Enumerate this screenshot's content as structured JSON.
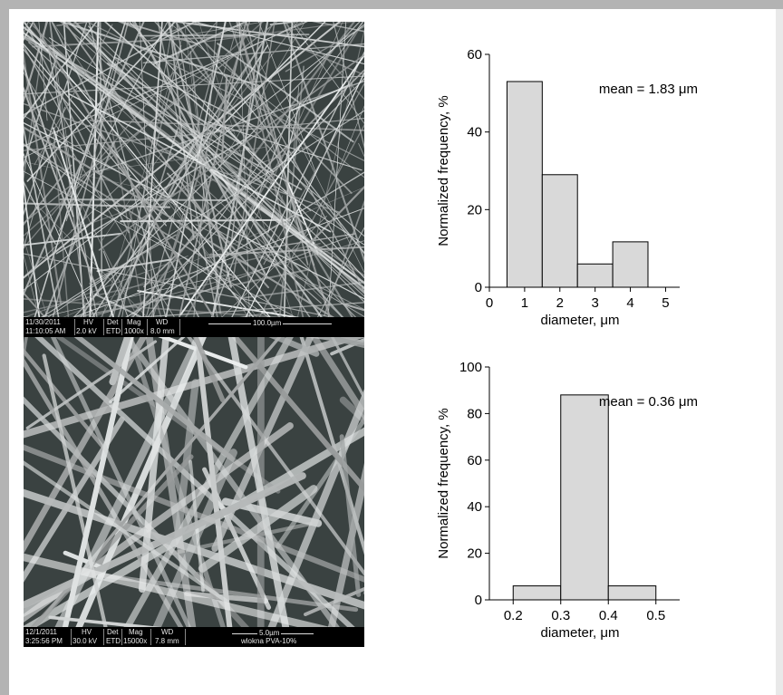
{
  "colors": {
    "frame": "#b3b3b3",
    "bar_fill": "#d9d9d9",
    "bar_stroke": "#000000"
  },
  "sem_images": [
    {
      "date": "11/30/2011",
      "time": "11:10:05 AM",
      "hv_label": "HV",
      "hv_value": "2.0 kV",
      "det_label": "Det",
      "det_value": "ETD",
      "mag_label": "Mag",
      "mag_value": "1000x",
      "wd_label": "WD",
      "wd_value": "8.0 mm",
      "scale_label": "100.0µm",
      "caption": ""
    },
    {
      "date": "12/1/2011",
      "time": "3:25:56 PM",
      "hv_label": "HV",
      "hv_value": "30.0 kV",
      "det_label": "Det",
      "det_value": "ETD",
      "mag_label": "Mag",
      "mag_value": "15000x",
      "wd_label": "WD",
      "wd_value": "7.8 mm",
      "scale_label": "5.0µm",
      "caption": "wlokna PVA-10%"
    }
  ],
  "chart_data": [
    {
      "type": "bar",
      "title": "",
      "annotation": "mean = 1.83 μm",
      "xlabel": "diameter, μm",
      "ylabel": "Normalized frequency, %",
      "xlim": [
        0,
        5.4
      ],
      "ylim": [
        0,
        60
      ],
      "xticks": [
        0,
        1,
        2,
        3,
        4,
        5
      ],
      "yticks": [
        0,
        20,
        40,
        60
      ],
      "bins": [
        {
          "from": 0.5,
          "to": 1.5,
          "value": 53
        },
        {
          "from": 1.5,
          "to": 2.5,
          "value": 29
        },
        {
          "from": 2.5,
          "to": 3.5,
          "value": 6
        },
        {
          "from": 3.5,
          "to": 4.5,
          "value": 11.7
        }
      ],
      "grid": false
    },
    {
      "type": "bar",
      "title": "",
      "annotation": "mean = 0.36 μm",
      "xlabel": "diameter, μm",
      "ylabel": "Normalized frequency, %",
      "xlim": [
        0.15,
        0.55
      ],
      "ylim": [
        0,
        100
      ],
      "xticks": [
        0.2,
        0.3,
        0.4,
        0.5
      ],
      "yticks": [
        0,
        20,
        40,
        60,
        80,
        100
      ],
      "bins": [
        {
          "from": 0.2,
          "to": 0.3,
          "value": 6
        },
        {
          "from": 0.3,
          "to": 0.4,
          "value": 88
        },
        {
          "from": 0.4,
          "to": 0.5,
          "value": 6
        }
      ],
      "grid": false
    }
  ]
}
